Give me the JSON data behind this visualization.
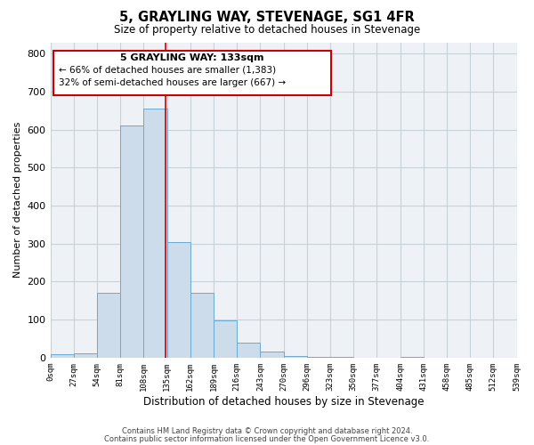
{
  "title": "5, GRAYLING WAY, STEVENAGE, SG1 4FR",
  "subtitle": "Size of property relative to detached houses in Stevenage",
  "xlabel": "Distribution of detached houses by size in Stevenage",
  "ylabel": "Number of detached properties",
  "bar_edges": [
    0,
    27,
    54,
    81,
    108,
    135,
    162,
    189,
    216,
    243,
    270,
    297,
    324,
    351,
    378,
    405,
    432,
    459,
    486,
    513,
    540
  ],
  "bar_heights": [
    8,
    12,
    170,
    610,
    655,
    305,
    170,
    97,
    40,
    15,
    5,
    2,
    1,
    0,
    0,
    1,
    0,
    0,
    0,
    0
  ],
  "property_size": 133,
  "annotation_title": "5 GRAYLING WAY: 133sqm",
  "annotation_line1": "← 66% of detached houses are smaller (1,383)",
  "annotation_line2": "32% of semi-detached houses are larger (667) →",
  "bar_color": "#cddcea",
  "bar_edge_color": "#6aaad4",
  "vline_color": "#cc0000",
  "grid_color": "#c8d0d8",
  "bg_color": "#eef2f7",
  "ylim": [
    0,
    830
  ],
  "xlim": [
    0,
    540
  ],
  "tick_labels": [
    "0sqm",
    "27sqm",
    "54sqm",
    "81sqm",
    "108sqm",
    "135sqm",
    "162sqm",
    "189sqm",
    "216sqm",
    "243sqm",
    "270sqm",
    "296sqm",
    "323sqm",
    "350sqm",
    "377sqm",
    "404sqm",
    "431sqm",
    "458sqm",
    "485sqm",
    "512sqm",
    "539sqm"
  ],
  "footer1": "Contains HM Land Registry data © Crown copyright and database right 2024.",
  "footer2": "Contains public sector information licensed under the Open Government Licence v3.0."
}
